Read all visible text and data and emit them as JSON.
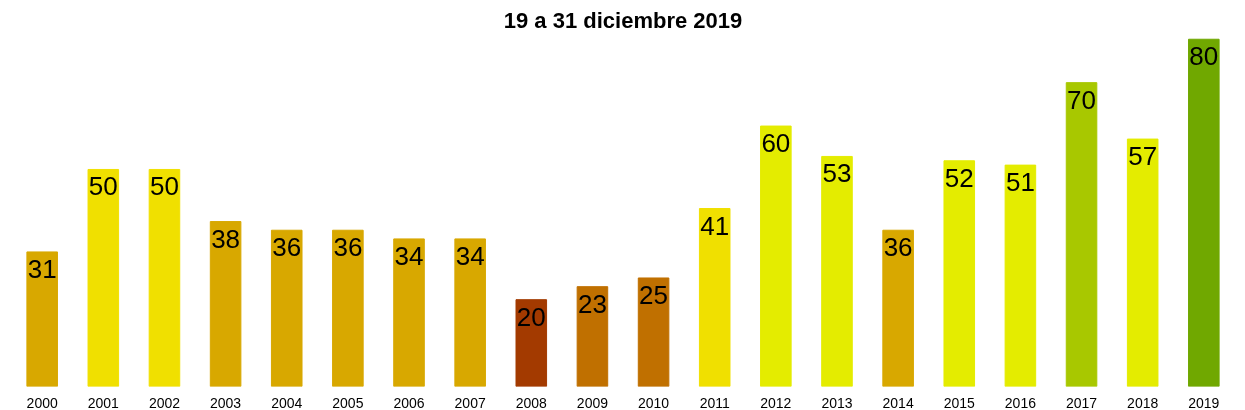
{
  "chart_data": {
    "type": "bar",
    "title": "19 a 31 diciembre 2019",
    "categories": [
      "2000",
      "2001",
      "2002",
      "2003",
      "2004",
      "2005",
      "2006",
      "2007",
      "2008",
      "2009",
      "2010",
      "2011",
      "2012",
      "2013",
      "2014",
      "2015",
      "2016",
      "2017",
      "2018",
      "2019"
    ],
    "values": [
      31,
      50,
      50,
      38,
      36,
      36,
      34,
      34,
      20,
      23,
      25,
      41,
      60,
      53,
      36,
      52,
      51,
      70,
      57,
      80
    ],
    "colors": [
      "#d8a800",
      "#f0e000",
      "#f0e000",
      "#d8a800",
      "#d8a800",
      "#d8a800",
      "#d8a800",
      "#d8a800",
      "#a33a00",
      "#c07000",
      "#c07000",
      "#f0e000",
      "#e4ec00",
      "#e4ec00",
      "#d8a800",
      "#e4ec00",
      "#e4ec00",
      "#a8c800",
      "#e4ec00",
      "#70a800"
    ],
    "data_labels": true
  }
}
